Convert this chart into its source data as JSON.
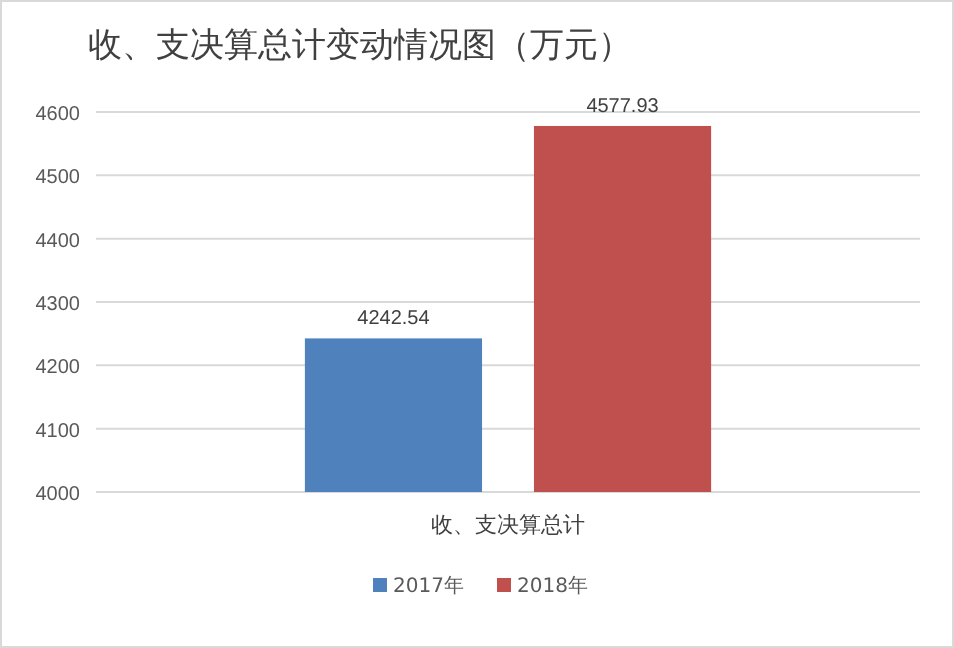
{
  "chart_data": {
    "type": "bar",
    "title": "收、支决算总计变动情况图（万元）",
    "categories": [
      "收、支决算总计"
    ],
    "series": [
      {
        "name": "2017年",
        "color": "#4f81bd",
        "values": [
          4242.54
        ]
      },
      {
        "name": "2018年",
        "color": "#c0504d",
        "values": [
          4577.93
        ]
      }
    ],
    "ylim": [
      4000,
      4600
    ],
    "yticks": [
      4000,
      4100,
      4200,
      4300,
      4400,
      4500,
      4600
    ],
    "grid": "y",
    "legend": "bottom",
    "data_labels": true
  }
}
